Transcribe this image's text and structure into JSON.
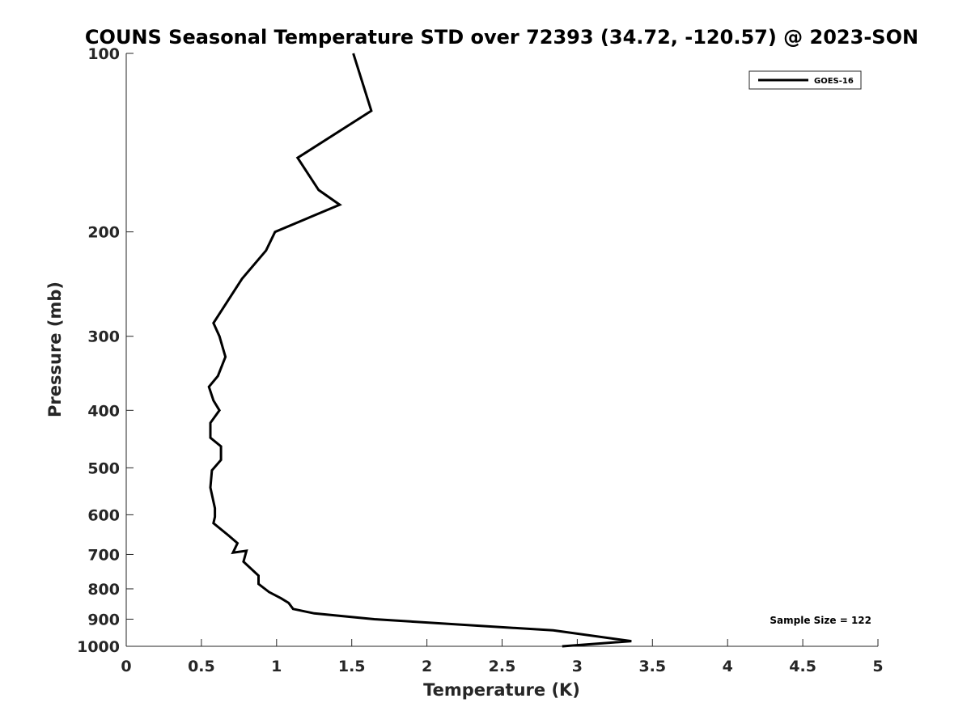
{
  "chart_data": {
    "type": "line",
    "title": "COUNS Seasonal Temperature STD over 72393 (34.72, -120.57) @ 2023-SON",
    "xlabel": "Temperature (K)",
    "ylabel": "Pressure (mb)",
    "xlim": [
      0,
      5
    ],
    "ylim": [
      100,
      1000
    ],
    "y_scale": "log",
    "y_reversed": true,
    "grid": false,
    "xticks": [
      0,
      0.5,
      1,
      1.5,
      2,
      2.5,
      3,
      3.5,
      4,
      4.5,
      5
    ],
    "xtick_labels": [
      "0",
      "0.5",
      "1",
      "1.5",
      "2",
      "2.5",
      "3",
      "3.5",
      "4",
      "4.5",
      "5"
    ],
    "yticks": [
      100,
      200,
      300,
      400,
      500,
      600,
      700,
      800,
      900,
      1000
    ],
    "ytick_labels": [
      "100",
      "200",
      "300",
      "400",
      "500",
      "600",
      "700",
      "800",
      "900",
      "1000"
    ],
    "legend_position": "top-right",
    "series": [
      {
        "name": "GOES-16",
        "color": "#000000",
        "points": [
          [
            1.51,
            100
          ],
          [
            1.63,
            125
          ],
          [
            1.14,
            150
          ],
          [
            1.28,
            170
          ],
          [
            1.42,
            180
          ],
          [
            0.99,
            200
          ],
          [
            0.93,
            215
          ],
          [
            0.77,
            240
          ],
          [
            0.64,
            270
          ],
          [
            0.58,
            285
          ],
          [
            0.62,
            300
          ],
          [
            0.66,
            325
          ],
          [
            0.61,
            350
          ],
          [
            0.55,
            365
          ],
          [
            0.58,
            385
          ],
          [
            0.62,
            400
          ],
          [
            0.56,
            420
          ],
          [
            0.56,
            445
          ],
          [
            0.63,
            460
          ],
          [
            0.63,
            485
          ],
          [
            0.57,
            505
          ],
          [
            0.56,
            540
          ],
          [
            0.59,
            585
          ],
          [
            0.59,
            605
          ],
          [
            0.58,
            620
          ],
          [
            0.68,
            650
          ],
          [
            0.74,
            670
          ],
          [
            0.71,
            695
          ],
          [
            0.8,
            690
          ],
          [
            0.78,
            720
          ],
          [
            0.88,
            760
          ],
          [
            0.88,
            785
          ],
          [
            0.95,
            810
          ],
          [
            1.03,
            830
          ],
          [
            1.08,
            845
          ],
          [
            1.11,
            865
          ],
          [
            1.25,
            880
          ],
          [
            1.65,
            900
          ],
          [
            2.84,
            940
          ],
          [
            3.36,
            980
          ],
          [
            2.9,
            1000
          ]
        ]
      }
    ],
    "annotations": [
      {
        "text": "Sample Size = 122",
        "position": "bottom-right"
      }
    ]
  }
}
